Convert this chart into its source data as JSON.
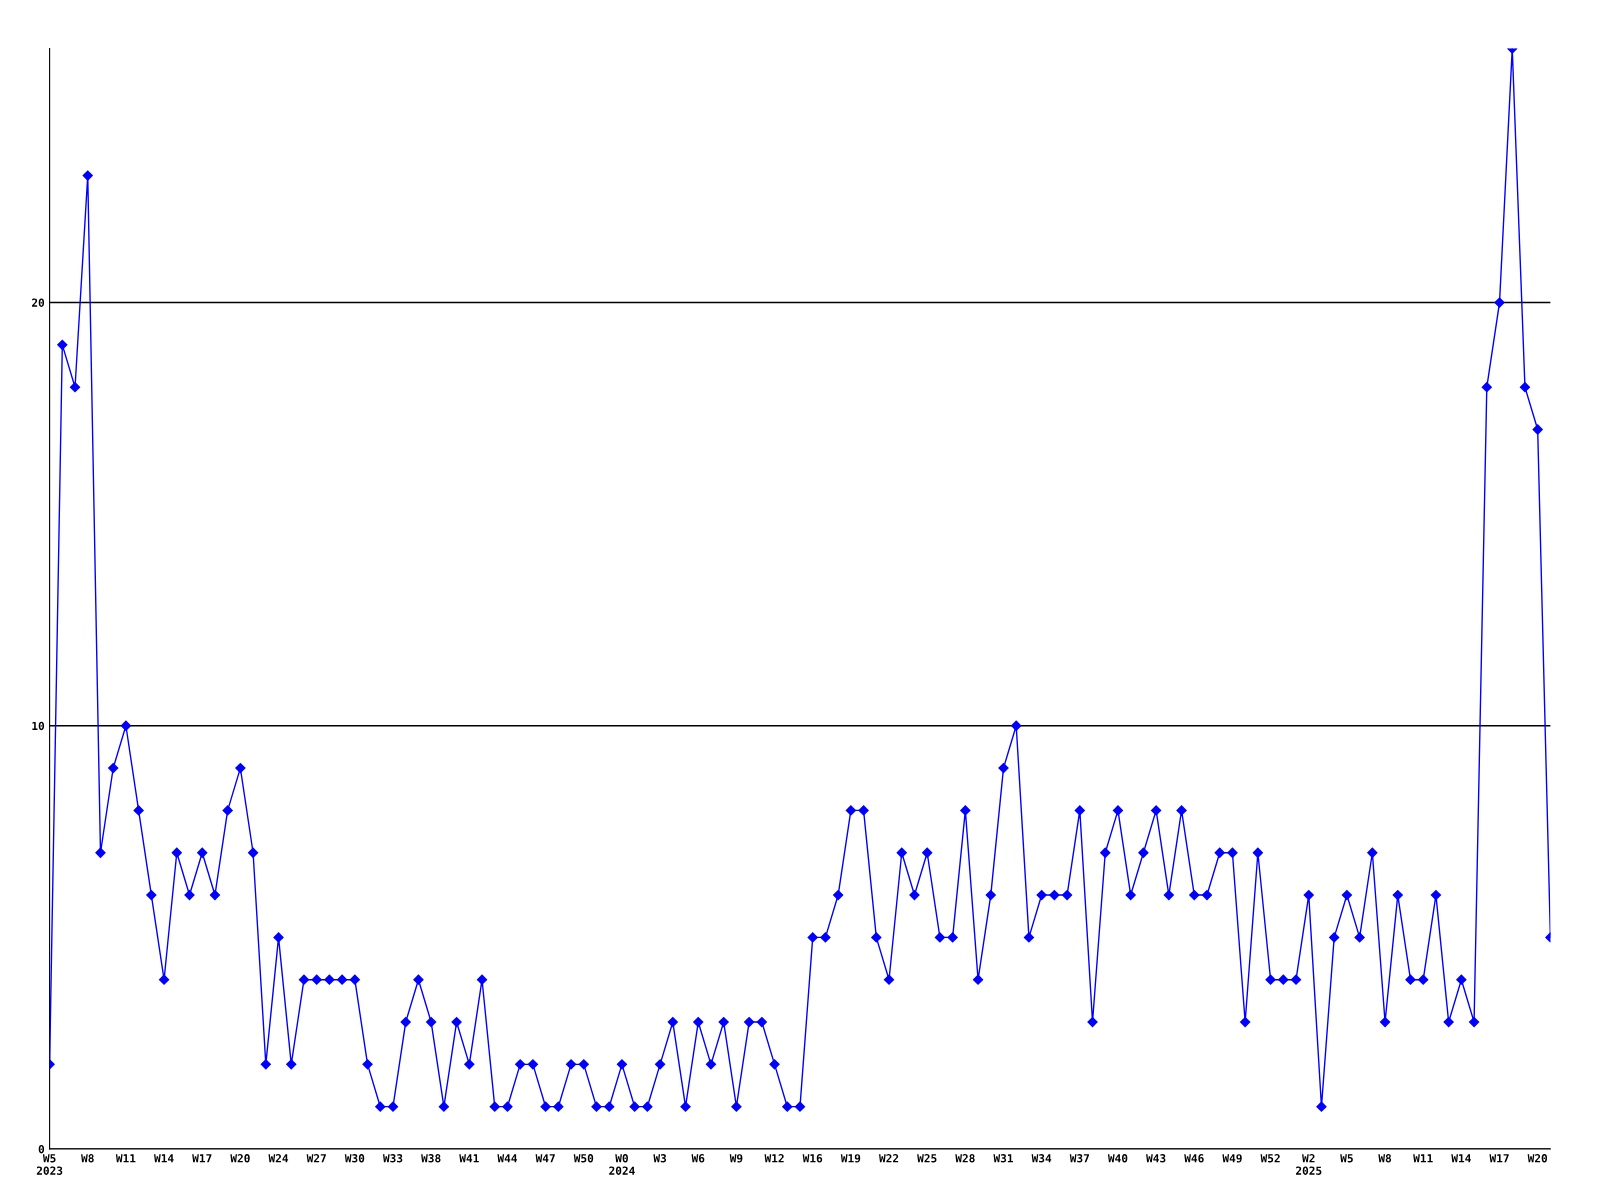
{
  "chart_data": {
    "type": "line",
    "categories": [
      "W5\n2023",
      null,
      null,
      "W8",
      null,
      null,
      "W11",
      null,
      null,
      "W14",
      null,
      null,
      "W17",
      null,
      null,
      "W20",
      null,
      null,
      "W24",
      null,
      null,
      "W27",
      null,
      null,
      "W30",
      null,
      null,
      "W33",
      null,
      null,
      "W38",
      null,
      null,
      "W41",
      null,
      null,
      "W44",
      null,
      null,
      "W47",
      null,
      null,
      "W50",
      null,
      null,
      "W0\n2024",
      null,
      null,
      "W3",
      null,
      null,
      "W6",
      null,
      null,
      "W9",
      null,
      null,
      "W12",
      null,
      null,
      "W16",
      null,
      null,
      "W19",
      null,
      null,
      "W22",
      null,
      null,
      "W25",
      null,
      null,
      "W28",
      null,
      null,
      "W31",
      null,
      null,
      "W34",
      null,
      null,
      "W37",
      null,
      null,
      "W40",
      null,
      null,
      "W43",
      null,
      null,
      "W46",
      null,
      null,
      "W49",
      null,
      null,
      "W52",
      null,
      null,
      "W2\n2025",
      null,
      null,
      "W5",
      null,
      null,
      "W8",
      null,
      null,
      "W11",
      null,
      null,
      "W14",
      null,
      null,
      "W17",
      null,
      null,
      "W20",
      null
    ],
    "series": [
      {
        "color": "#0000ff",
        "values": [
          2,
          19,
          18,
          23,
          7,
          9,
          10,
          8,
          6,
          4,
          7,
          6,
          7,
          6,
          8,
          9,
          7,
          2,
          5,
          2,
          4,
          4,
          4,
          4,
          4,
          2,
          1,
          1,
          3,
          4,
          3,
          1,
          3,
          2,
          4,
          1,
          1,
          2,
          2,
          1,
          1,
          2,
          2,
          1,
          1,
          2,
          1,
          1,
          2,
          3,
          1,
          3,
          2,
          3,
          1,
          3,
          3,
          2,
          1,
          1,
          5,
          5,
          6,
          8,
          8,
          5,
          4,
          7,
          6,
          7,
          5,
          5,
          8,
          4,
          6,
          9,
          10,
          5,
          6,
          6,
          6,
          8,
          3,
          7,
          8,
          6,
          7,
          8,
          6,
          8,
          6,
          6,
          7,
          7,
          3,
          7,
          4,
          4,
          4,
          6,
          1,
          5,
          6,
          5,
          7,
          3,
          6,
          4,
          4,
          6,
          3,
          4,
          3,
          18,
          20,
          26,
          18,
          17,
          5
        ]
      }
    ],
    "ylim": [
      0,
      26
    ],
    "yticks": [
      0,
      10,
      20
    ],
    "grid": "y",
    "marker": "diamond",
    "line_style": "solid"
  }
}
